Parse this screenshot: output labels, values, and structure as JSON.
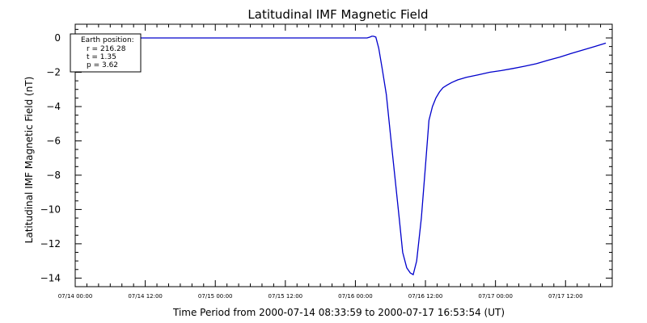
{
  "chart_data": {
    "type": "line",
    "title": "Latitudinal IMF Magnetic Field",
    "xlabel": "Time Period from 2000-07-14 08:33:59 to 2000-07-17 16:53:54 (UT)",
    "ylabel": "Latitudinal IMF Magnetic Field (nT)",
    "x_unit": "hours",
    "xlim": [
      0,
      92
    ],
    "ylim": [
      -14.5,
      0.8
    ],
    "x_ticks": [
      {
        "x": 0,
        "label": "07/14 00:00"
      },
      {
        "x": 12,
        "label": "07/14 12:00"
      },
      {
        "x": 24,
        "label": "07/15 00:00"
      },
      {
        "x": 36,
        "label": "07/15 12:00"
      },
      {
        "x": 48,
        "label": "07/16 00:00"
      },
      {
        "x": 60,
        "label": "07/16 12:00"
      },
      {
        "x": 72,
        "label": "07/17 00:00"
      },
      {
        "x": 84,
        "label": "07/17 12:00"
      }
    ],
    "y_ticks": [
      0,
      -2,
      -4,
      -6,
      -8,
      -10,
      -12,
      -14
    ],
    "series_color": "#0000cc",
    "x": [
      8.57,
      12,
      20,
      30,
      40,
      48,
      48.5,
      50.0,
      50.5,
      50.8,
      51.1,
      51.5,
      52.0,
      52.6,
      53.3,
      54.0,
      54.8,
      55.5,
      56.1,
      56.8,
      57.4,
      57.9,
      58.5,
      59.3,
      60.0,
      60.6,
      61.2,
      61.8,
      62.4,
      63.0,
      63.7,
      64.5,
      65.5,
      67,
      69,
      71,
      73,
      75,
      77,
      79,
      81,
      83,
      85,
      87,
      89,
      90.9
    ],
    "y": [
      0,
      0,
      0,
      0,
      0,
      0,
      0,
      0,
      0.05,
      0.1,
      0.1,
      0.05,
      -0.6,
      -1.8,
      -3.3,
      -5.6,
      -8.2,
      -10.5,
      -12.5,
      -13.4,
      -13.7,
      -13.8,
      -13.0,
      -10.5,
      -7.5,
      -4.8,
      -4.0,
      -3.5,
      -3.15,
      -2.9,
      -2.75,
      -2.6,
      -2.45,
      -2.3,
      -2.15,
      -2.0,
      -1.9,
      -1.78,
      -1.65,
      -1.5,
      -1.3,
      -1.12,
      -0.9,
      -0.7,
      -0.5,
      -0.3
    ],
    "legend": {
      "title": "Earth position:",
      "lines": [
        "r = 216.28",
        "t = 1.35",
        "p = 3.62"
      ]
    }
  }
}
